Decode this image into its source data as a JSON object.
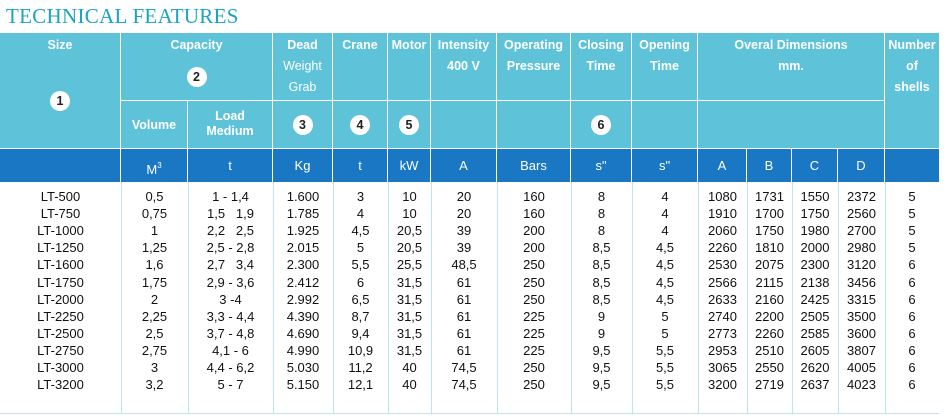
{
  "title": "TECHNICAL FEATURES",
  "header": {
    "size": "Size",
    "capacity": "Capacity",
    "volume": "Volume",
    "load_medium": [
      "Load",
      "Medium"
    ],
    "dead_weight": [
      "Dead",
      "Weight",
      "Grab"
    ],
    "crane": "Crane",
    "motor": "Motor",
    "intensity": [
      "Intensity",
      "400 V"
    ],
    "operating_pressure": [
      "Operating",
      "Pressure"
    ],
    "closing_time": [
      "Closing",
      "Time"
    ],
    "opening_time": [
      "Opening",
      "Time"
    ],
    "overal_dimensions": [
      "Overal Dimensions",
      "mm."
    ],
    "number_of_shells": [
      "Number",
      "of",
      "shells"
    ]
  },
  "markers": [
    "1",
    "2",
    "3",
    "4",
    "5",
    "6"
  ],
  "units": {
    "volume": "M",
    "volume_exp": "3",
    "load": "t",
    "weight": "Kg",
    "crane": "t",
    "motor": "kW",
    "intensity": "A",
    "pressure": "Bars",
    "closing": "s\"",
    "opening": "s\"",
    "dim_a": "A",
    "dim_b": "B",
    "dim_c": "C",
    "dim_d": "D",
    "shells": ""
  },
  "rows": [
    [
      "LT-500",
      "0,5",
      "1 - 1,4",
      "1.600",
      "3",
      "10",
      "20",
      "160",
      "8",
      "4",
      "1080",
      "1731",
      "1550",
      "2372",
      "5"
    ],
    [
      "LT-750",
      "0,75",
      "1,5   1,9",
      "1.785",
      "4",
      "10",
      "20",
      "160",
      "8",
      "4",
      "1910",
      "1700",
      "1750",
      "2560",
      "5"
    ],
    [
      "LT-1000",
      "1",
      "2,2   2,5",
      "1.925",
      "4,5",
      "20,5",
      "39",
      "200",
      "8",
      "4",
      "2060",
      "1750",
      "1980",
      "2700",
      "5"
    ],
    [
      "LT-1250",
      "1,25",
      "2,5 - 2,8",
      "2.015",
      "5",
      "20,5",
      "39",
      "200",
      "8,5",
      "4,5",
      "2260",
      "1810",
      "2000",
      "2980",
      "5"
    ],
    [
      "LT-1600",
      "1,6",
      "2,7   3,4",
      "2.300",
      "5,5",
      "25,5",
      "48,5",
      "250",
      "8,5",
      "4,5",
      "2530",
      "2075",
      "2300",
      "3120",
      "6"
    ],
    [
      "LT-1750",
      "1,75",
      "2,9 - 3,6",
      "2.412",
      "6",
      "31,5",
      "61",
      "250",
      "8,5",
      "4,5",
      "2566",
      "2115",
      "2138",
      "3456",
      "6"
    ],
    [
      "LT-2000",
      "2",
      "3 -4",
      "2.992",
      "6,5",
      "31,5",
      "61",
      "250",
      "8,5",
      "4,5",
      "2633",
      "2160",
      "2425",
      "3315",
      "6"
    ],
    [
      "LT-2250",
      "2,25",
      "3,3 - 4,4",
      "4.390",
      "8,7",
      "31,5",
      "61",
      "225",
      "9",
      "5",
      "2740",
      "2200",
      "2505",
      "3500",
      "6"
    ],
    [
      "LT-2500",
      "2,5",
      "3,7 - 4,8",
      "4.690",
      "9,4",
      "31,5",
      "61",
      "225",
      "9",
      "5",
      "2773",
      "2260",
      "2585",
      "3600",
      "6"
    ],
    [
      "LT-2750",
      "2,75",
      "4,1 - 6",
      "4.990",
      "10,9",
      "31,5",
      "61",
      "225",
      "9,5",
      "5,5",
      "2953",
      "2510",
      "2605",
      "3807",
      "6"
    ],
    [
      "LT-3000",
      "3",
      "4,4 - 6,2",
      "5.030",
      "11,2",
      "40",
      "74,5",
      "250",
      "9,5",
      "5,5",
      "3065",
      "2550",
      "2620",
      "4005",
      "6"
    ],
    [
      "LT-3200",
      "3,2",
      "5 - 7",
      "5.150",
      "12,1",
      "40",
      "74,5",
      "250",
      "9,5",
      "5,5",
      "3200",
      "2719",
      "2637",
      "4023",
      "6"
    ]
  ],
  "colors": {
    "title": "#18a4c4",
    "header_bg": "#5ec3d8",
    "units_bg": "#1a77c3",
    "grid_line": "#bfe3ec"
  }
}
